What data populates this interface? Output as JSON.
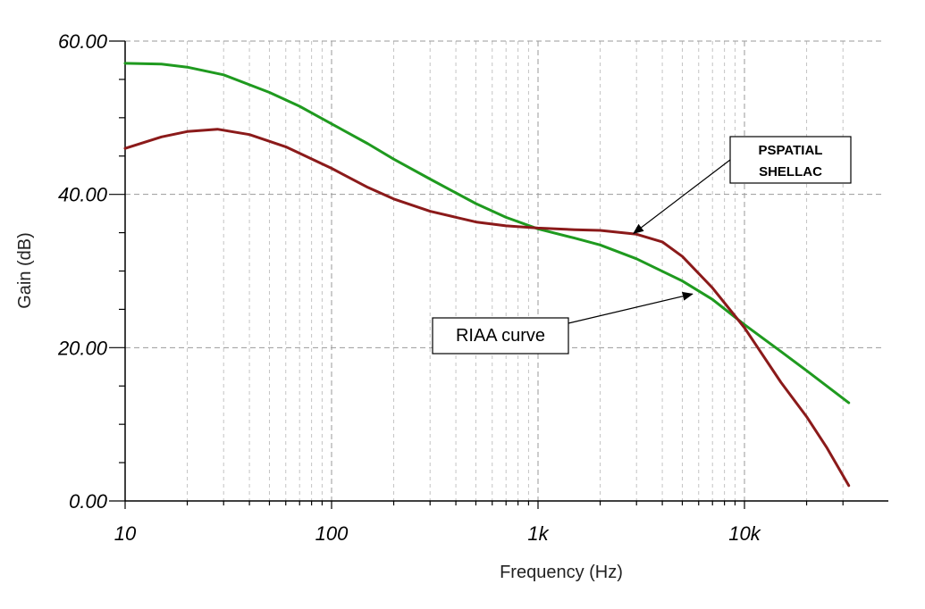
{
  "chart_data": {
    "type": "line",
    "title": "",
    "xlabel": "Frequency (Hz)",
    "ylabel": "Gain (dB)",
    "x_scale": "log",
    "xlim": [
      10,
      35000
    ],
    "ylim": [
      0,
      60
    ],
    "grid": true,
    "x_tick_labels": [
      {
        "value": 10,
        "label": "10"
      },
      {
        "value": 100,
        "label": "100"
      },
      {
        "value": 1000,
        "label": "1k"
      },
      {
        "value": 10000,
        "label": "10k"
      }
    ],
    "y_tick_labels": [
      {
        "value": 0,
        "label": "0.00"
      },
      {
        "value": 20,
        "label": "20.00"
      },
      {
        "value": 40,
        "label": "40.00"
      },
      {
        "value": 60,
        "label": "60.00"
      }
    ],
    "series": [
      {
        "color": "#1f9a1f",
        "x": [
          10,
          15,
          20,
          30,
          50,
          70,
          100,
          150,
          200,
          300,
          500,
          700,
          1000,
          1500,
          2000,
          3000,
          5000,
          7000,
          10000,
          15000,
          20000,
          32000
        ],
        "y": [
          57.1,
          57.0,
          56.6,
          55.6,
          53.3,
          51.5,
          49.2,
          46.6,
          44.6,
          42.0,
          38.8,
          37.0,
          35.5,
          34.3,
          33.4,
          31.6,
          28.7,
          26.3,
          23.0,
          19.5,
          17.0,
          12.8
        ]
      },
      {
        "color": "#8b1a1a",
        "x": [
          10,
          15,
          20,
          28,
          40,
          60,
          100,
          150,
          200,
          300,
          500,
          700,
          1000,
          1500,
          2000,
          3000,
          4000,
          5000,
          7000,
          10000,
          15000,
          20000,
          25000,
          32000
        ],
        "y": [
          46.0,
          47.5,
          48.2,
          48.5,
          47.8,
          46.2,
          43.4,
          40.9,
          39.4,
          37.8,
          36.4,
          35.9,
          35.6,
          35.4,
          35.3,
          34.8,
          33.8,
          31.9,
          27.8,
          22.6,
          15.5,
          11.0,
          7.0,
          2.0
        ]
      }
    ],
    "annotations": [
      {
        "text_lines": [
          "PSPATIAL",
          "SHELLAC"
        ],
        "arrow_target": {
          "x": 2900,
          "y": 34.9
        }
      },
      {
        "text_lines": [
          "RIAA curve"
        ],
        "arrow_target": {
          "x": 5600,
          "y": 27.0
        }
      }
    ]
  }
}
